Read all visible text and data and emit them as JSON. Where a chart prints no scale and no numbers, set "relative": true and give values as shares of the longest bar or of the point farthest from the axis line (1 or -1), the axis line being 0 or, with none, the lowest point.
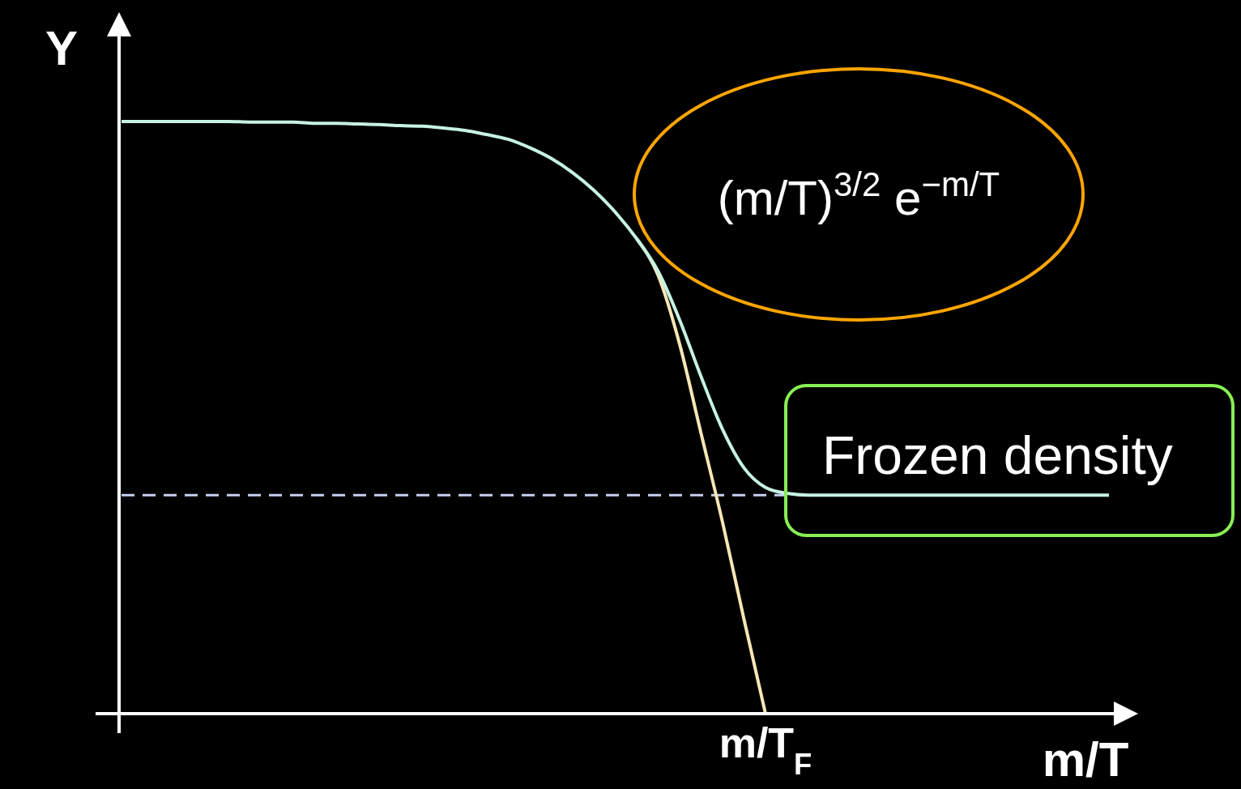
{
  "chart_data": {
    "type": "line",
    "relative": true,
    "xlabel": "m/T",
    "ylabel": "Y",
    "categories": [
      null,
      null,
      null,
      null,
      null,
      null,
      null,
      null,
      null,
      null,
      null,
      null,
      null,
      null,
      null,
      null,
      null,
      null,
      null,
      null,
      null,
      null,
      null,
      null,
      null,
      null,
      null,
      null,
      null,
      null,
      null,
      null,
      null,
      null,
      null,
      null,
      null,
      null,
      null,
      null,
      null,
      null,
      null,
      null,
      null,
      null,
      null
    ],
    "series": [
      {
        "color": "#f7e6b5",
        "values": [
          null,
          null,
          null,
          null,
          null,
          null,
          null,
          null,
          null,
          null,
          null,
          null,
          null,
          null,
          null,
          null,
          null,
          null,
          null,
          null,
          null,
          null,
          null,
          null,
          0.802,
          0.74,
          0.624,
          0.473,
          0.323,
          0.159,
          0,
          null,
          null,
          null,
          null,
          null,
          null,
          null,
          null,
          null,
          null,
          null,
          null,
          null,
          null,
          null,
          null
        ]
      },
      {
        "color": "#c6f2e2",
        "values": [
          1,
          1,
          1,
          1,
          1,
          1,
          0.999,
          0.999,
          0.999,
          0.997,
          0.997,
          0.996,
          0.995,
          0.993,
          0.992,
          0.989,
          0.985,
          0.978,
          0.97,
          0.956,
          0.938,
          0.914,
          0.884,
          0.847,
          0.802,
          0.747,
          0.665,
          0.569,
          0.48,
          0.415,
          0.382,
          0.372,
          0.369,
          0.369,
          0.369,
          0.369,
          0.369,
          0.369,
          0.369,
          0.369,
          0.369,
          0.369,
          0.369,
          0.369,
          0.369,
          0.369,
          0.369
        ]
      }
    ],
    "ref_lines": [
      {
        "axis": "y",
        "value": 0.369,
        "label": "Frozen density",
        "color": "#c8d0f0",
        "line_style": "dashed"
      }
    ],
    "annotations": [
      "(m/T)$^{3/2}$ e$^{−m/T}$",
      "m/T$_{F}$"
    ]
  }
}
